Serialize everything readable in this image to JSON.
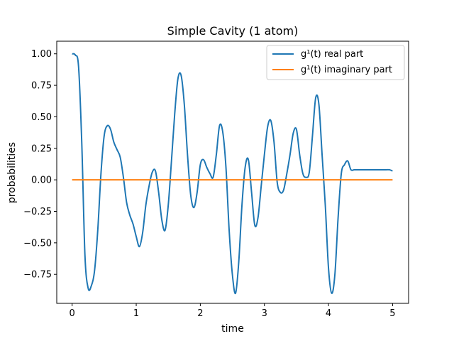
{
  "chart_data": {
    "type": "line",
    "title": "Simple Cavity (1 atom)",
    "xlabel": "time",
    "ylabel": "probabilities",
    "xlim": [
      -0.24,
      5.25
    ],
    "ylim": [
      -0.98,
      1.1
    ],
    "xticks": [
      0,
      1,
      2,
      3,
      4,
      5
    ],
    "xtick_labels": [
      "0",
      "1",
      "2",
      "3",
      "4",
      "5"
    ],
    "yticks": [
      -0.75,
      -0.5,
      -0.25,
      0.0,
      0.25,
      0.5,
      0.75,
      1.0
    ],
    "ytick_labels": [
      "−0.75",
      "−0.50",
      "−0.25",
      "0.00",
      "0.25",
      "0.50",
      "0.75",
      "1.00"
    ],
    "grid": false,
    "legend_position": "top-right",
    "series": [
      {
        "name": "g¹(t) real part",
        "color": "#1f77b4",
        "x": [
          0,
          0.05,
          0.1,
          0.15,
          0.2,
          0.25,
          0.3,
          0.35,
          0.4,
          0.45,
          0.5,
          0.55,
          0.6,
          0.65,
          0.7,
          0.75,
          0.8,
          0.85,
          0.9,
          0.95,
          1.0,
          1.05,
          1.1,
          1.15,
          1.2,
          1.25,
          1.3,
          1.35,
          1.4,
          1.45,
          1.5,
          1.55,
          1.6,
          1.65,
          1.7,
          1.75,
          1.8,
          1.85,
          1.9,
          1.95,
          2.0,
          2.05,
          2.1,
          2.15,
          2.2,
          2.25,
          2.3,
          2.35,
          2.4,
          2.45,
          2.5,
          2.55,
          2.6,
          2.65,
          2.7,
          2.75,
          2.8,
          2.85,
          2.9,
          2.95,
          3.0,
          3.05,
          3.1,
          3.15,
          3.2,
          3.25,
          3.3,
          3.35,
          3.4,
          3.45,
          3.5,
          3.55,
          3.6,
          3.65,
          3.7,
          3.75,
          3.8,
          3.85,
          3.9,
          3.95,
          4.0,
          4.05,
          4.1,
          4.15,
          4.2,
          4.25,
          4.3,
          4.35,
          4.4,
          4.45,
          4.5,
          4.55,
          4.6,
          4.65,
          4.7,
          4.75,
          4.8,
          4.85,
          4.9,
          4.95,
          5.0
        ],
        "y": [
          1.0,
          0.99,
          0.9,
          0.3,
          -0.6,
          -0.86,
          -0.84,
          -0.72,
          -0.4,
          0.05,
          0.35,
          0.43,
          0.4,
          0.3,
          0.24,
          0.18,
          0.02,
          -0.18,
          -0.28,
          -0.35,
          -0.45,
          -0.53,
          -0.42,
          -0.2,
          -0.05,
          0.06,
          0.07,
          -0.1,
          -0.32,
          -0.4,
          -0.2,
          0.15,
          0.52,
          0.8,
          0.83,
          0.6,
          0.2,
          -0.12,
          -0.22,
          -0.1,
          0.12,
          0.16,
          0.1,
          0.05,
          0.02,
          0.2,
          0.43,
          0.38,
          0.1,
          -0.4,
          -0.75,
          -0.9,
          -0.65,
          -0.2,
          0.1,
          0.16,
          -0.1,
          -0.36,
          -0.3,
          -0.05,
          0.2,
          0.42,
          0.47,
          0.3,
          -0.02,
          -0.1,
          -0.08,
          0.05,
          0.2,
          0.37,
          0.4,
          0.2,
          0.05,
          0.02,
          0.06,
          0.35,
          0.65,
          0.6,
          0.2,
          -0.2,
          -0.7,
          -0.9,
          -0.75,
          -0.3,
          0.05,
          0.12,
          0.15,
          0.08,
          0.08,
          0.08,
          0.08,
          0.08,
          0.08,
          0.08,
          0.08,
          0.08,
          0.08,
          0.08,
          0.08,
          0.08,
          0.07
        ]
      },
      {
        "name": "g¹(t) imaginary part",
        "color": "#ff7f0e",
        "x": [
          0,
          5.0
        ],
        "y": [
          0.0,
          0.0
        ]
      }
    ]
  }
}
